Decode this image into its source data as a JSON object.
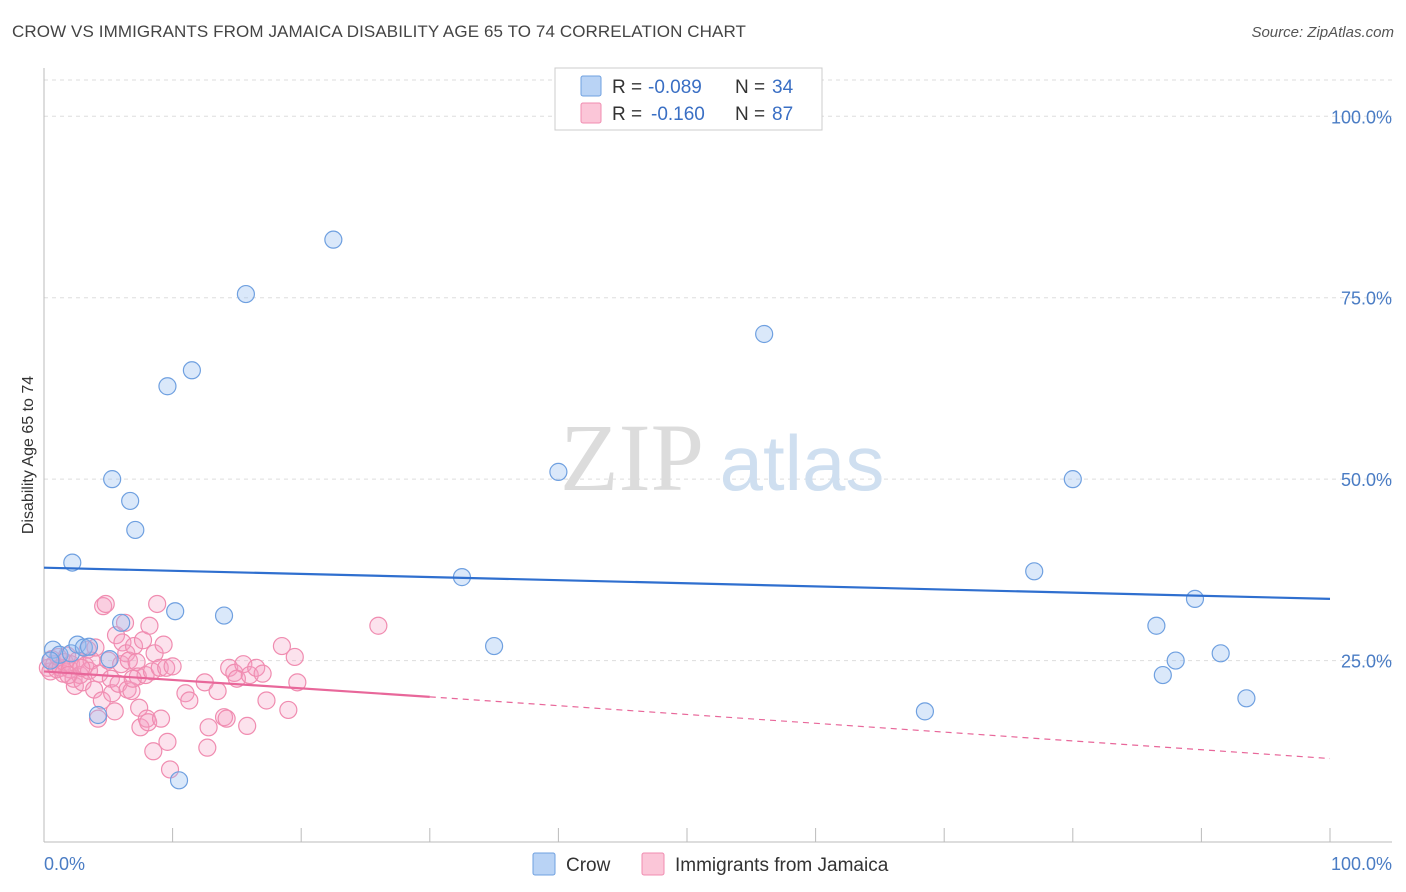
{
  "title": "CROW VS IMMIGRANTS FROM JAMAICA DISABILITY AGE 65 TO 74 CORRELATION CHART",
  "source": "Source: ZipAtlas.com",
  "watermark": {
    "zip": "ZIP",
    "atlas": "atlas"
  },
  "chart_data": {
    "type": "scatter",
    "title": "CROW VS IMMIGRANTS FROM JAMAICA DISABILITY AGE 65 TO 74 CORRELATION CHART",
    "xlabel": "",
    "ylabel": "Disability Age 65 to 74",
    "xlim": [
      0,
      100
    ],
    "ylim": [
      0,
      105
    ],
    "x_tick_labels": [
      "0.0%",
      "100.0%"
    ],
    "y_ticks": [
      25,
      50,
      75,
      100
    ],
    "y_tick_labels": [
      "25.0%",
      "50.0%",
      "75.0%",
      "100.0%"
    ],
    "grid": true,
    "legend_position": "top-center",
    "series": [
      {
        "name": "Crow",
        "color": "#6fa0e0",
        "line_color": "#2f6fcf",
        "R": "-0.089",
        "N": "34",
        "trend": {
          "x0": 0,
          "y0": 37.8,
          "x1": 100,
          "y1": 33.5
        },
        "points": [
          [
            0.7,
            26.5
          ],
          [
            1.2,
            25.8
          ],
          [
            2.1,
            26.0
          ],
          [
            2.2,
            38.5
          ],
          [
            2.6,
            27.2
          ],
          [
            3.1,
            26.8
          ],
          [
            3.5,
            26.9
          ],
          [
            4.2,
            17.5
          ],
          [
            5.1,
            25.2
          ],
          [
            5.3,
            50.0
          ],
          [
            6.0,
            30.2
          ],
          [
            6.7,
            47.0
          ],
          [
            7.1,
            43.0
          ],
          [
            9.6,
            62.8
          ],
          [
            10.2,
            31.8
          ],
          [
            10.5,
            8.5
          ],
          [
            11.5,
            65.0
          ],
          [
            14.0,
            31.2
          ],
          [
            15.7,
            75.5
          ],
          [
            22.5,
            83.0
          ],
          [
            32.5,
            36.5
          ],
          [
            35.0,
            27.0
          ],
          [
            40.0,
            51.0
          ],
          [
            56.0,
            70.0
          ],
          [
            68.5,
            18.0
          ],
          [
            80.0,
            50.0
          ],
          [
            77.0,
            37.3
          ],
          [
            86.5,
            29.8
          ],
          [
            87.0,
            23.0
          ],
          [
            88.0,
            25.0
          ],
          [
            89.5,
            33.5
          ],
          [
            91.5,
            26.0
          ],
          [
            93.5,
            19.8
          ],
          [
            0.5,
            25.0
          ]
        ]
      },
      {
        "name": "Immigrants from Jamaica",
        "color": "#f08cb0",
        "line_color": "#e8679a",
        "R": "-0.160",
        "N": "87",
        "trend": {
          "x0": 0,
          "y0": 23.5,
          "x1": 30,
          "y1": 20.0,
          "dash_x1": 100,
          "dash_y1": 11.5
        },
        "points": [
          [
            0.3,
            24.0
          ],
          [
            0.5,
            23.5
          ],
          [
            0.6,
            25.2
          ],
          [
            0.8,
            24.5
          ],
          [
            1.0,
            23.8
          ],
          [
            1.1,
            25.5
          ],
          [
            1.3,
            24.0
          ],
          [
            1.5,
            23.2
          ],
          [
            1.6,
            24.8
          ],
          [
            1.8,
            25.7
          ],
          [
            2.0,
            23.8
          ],
          [
            2.1,
            24.5
          ],
          [
            2.3,
            22.5
          ],
          [
            2.4,
            21.5
          ],
          [
            2.6,
            25.0
          ],
          [
            2.8,
            23.0
          ],
          [
            3.0,
            22.0
          ],
          [
            3.2,
            24.3
          ],
          [
            3.4,
            26.5
          ],
          [
            3.5,
            23.6
          ],
          [
            3.7,
            25.0
          ],
          [
            3.9,
            21.0
          ],
          [
            4.0,
            26.8
          ],
          [
            4.2,
            17.0
          ],
          [
            4.3,
            23.2
          ],
          [
            4.5,
            19.5
          ],
          [
            4.6,
            32.5
          ],
          [
            4.8,
            32.8
          ],
          [
            5.0,
            25.0
          ],
          [
            5.2,
            22.5
          ],
          [
            5.3,
            20.5
          ],
          [
            5.5,
            18.0
          ],
          [
            5.6,
            28.5
          ],
          [
            5.8,
            21.8
          ],
          [
            6.0,
            24.5
          ],
          [
            6.1,
            27.5
          ],
          [
            6.3,
            30.2
          ],
          [
            6.4,
            26.0
          ],
          [
            6.5,
            21.0
          ],
          [
            6.6,
            25.0
          ],
          [
            6.8,
            20.8
          ],
          [
            7.0,
            27.0
          ],
          [
            7.2,
            24.8
          ],
          [
            7.3,
            22.8
          ],
          [
            7.4,
            18.5
          ],
          [
            7.5,
            15.8
          ],
          [
            7.7,
            27.8
          ],
          [
            7.9,
            23.0
          ],
          [
            8.0,
            17.0
          ],
          [
            8.1,
            16.5
          ],
          [
            8.2,
            29.8
          ],
          [
            8.4,
            23.5
          ],
          [
            8.5,
            12.5
          ],
          [
            8.6,
            26.0
          ],
          [
            8.8,
            32.8
          ],
          [
            9.0,
            24.0
          ],
          [
            9.1,
            17.0
          ],
          [
            9.3,
            27.2
          ],
          [
            9.5,
            24.0
          ],
          [
            9.6,
            13.8
          ],
          [
            9.8,
            10.0
          ],
          [
            10.0,
            24.2
          ],
          [
            11.0,
            20.5
          ],
          [
            11.3,
            19.5
          ],
          [
            12.5,
            22.0
          ],
          [
            12.7,
            13.0
          ],
          [
            12.8,
            15.8
          ],
          [
            13.5,
            20.8
          ],
          [
            14.0,
            17.2
          ],
          [
            14.2,
            17.0
          ],
          [
            14.4,
            24.0
          ],
          [
            14.8,
            23.3
          ],
          [
            15.0,
            22.5
          ],
          [
            15.5,
            24.5
          ],
          [
            16.0,
            23.0
          ],
          [
            16.5,
            24.0
          ],
          [
            17.0,
            23.2
          ],
          [
            17.3,
            19.5
          ],
          [
            18.5,
            27.0
          ],
          [
            19.0,
            18.2
          ],
          [
            19.5,
            25.5
          ],
          [
            19.7,
            22.0
          ],
          [
            26.0,
            29.8
          ],
          [
            1.9,
            23.0
          ],
          [
            2.9,
            24.0
          ],
          [
            6.9,
            22.5
          ],
          [
            15.8,
            16.0
          ]
        ]
      }
    ]
  },
  "legend": {
    "r_label": "R =",
    "n_label": "N ="
  }
}
